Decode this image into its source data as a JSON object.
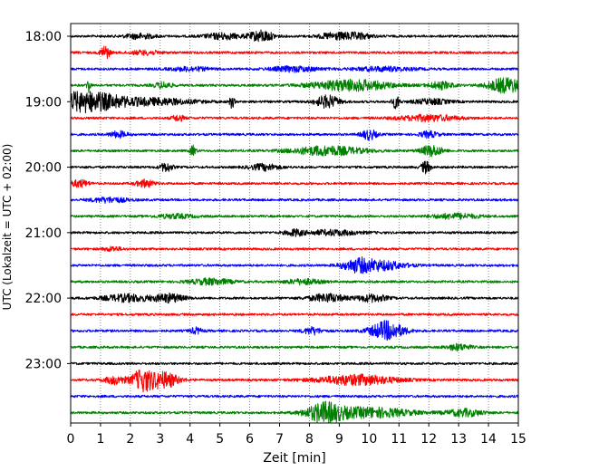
{
  "chart_data": {
    "type": "line",
    "title": "",
    "xlabel": "Zeit  [min]",
    "ylabel": "UTC (Lokalzeit = UTC + 02:00)",
    "xlim": [
      0,
      15
    ],
    "x_ticks": [
      "0",
      "1",
      "2",
      "3",
      "4",
      "5",
      "6",
      "7",
      "8",
      "9",
      "10",
      "11",
      "12",
      "13",
      "14",
      "15"
    ],
    "y_tick_labels": [
      "18:00",
      "19:00",
      "20:00",
      "21:00",
      "22:00",
      "23:00"
    ],
    "grid": "vertical-dotted",
    "trace_colors": [
      "#000000",
      "#ff0000",
      "#0000ff",
      "#008000"
    ],
    "traces": [
      {
        "start": "18:00",
        "color": "black",
        "events": [
          [
            2.3,
            0.5,
            0.25
          ],
          [
            5.1,
            0.6,
            0.3
          ],
          [
            6.4,
            0.4,
            0.55
          ],
          [
            8.8,
            0.5,
            0.3
          ],
          [
            9.6,
            0.5,
            0.3
          ]
        ]
      },
      {
        "start": "18:15",
        "color": "red",
        "events": [
          [
            1.15,
            0.15,
            0.7
          ],
          [
            2.5,
            0.5,
            0.2
          ]
        ]
      },
      {
        "start": "18:30",
        "color": "blue",
        "events": [
          [
            4.0,
            0.6,
            0.2
          ],
          [
            7.5,
            0.8,
            0.25
          ],
          [
            10.5,
            1.0,
            0.2
          ]
        ]
      },
      {
        "start": "18:45",
        "color": "green",
        "events": [
          [
            0.6,
            0.06,
            0.8
          ],
          [
            3.1,
            0.3,
            0.3
          ],
          [
            9.4,
            1.3,
            0.55
          ],
          [
            12.4,
            0.4,
            0.35
          ],
          [
            14.6,
            0.6,
            0.75
          ]
        ]
      },
      {
        "start": "19:00",
        "color": "black",
        "events": [
          [
            0.5,
            1.3,
            1.0
          ],
          [
            3.0,
            1.2,
            0.3
          ],
          [
            5.4,
            0.08,
            0.6
          ],
          [
            8.6,
            0.4,
            0.6
          ],
          [
            10.9,
            0.12,
            0.65
          ],
          [
            12.1,
            0.6,
            0.25
          ]
        ]
      },
      {
        "start": "19:15",
        "color": "red",
        "events": [
          [
            3.6,
            0.2,
            0.3
          ],
          [
            12.0,
            1.0,
            0.3
          ]
        ]
      },
      {
        "start": "19:30",
        "color": "blue",
        "events": [
          [
            1.6,
            0.3,
            0.3
          ],
          [
            10.0,
            0.25,
            0.5
          ],
          [
            12.0,
            0.3,
            0.3
          ]
        ]
      },
      {
        "start": "19:45",
        "color": "green",
        "events": [
          [
            4.1,
            0.1,
            0.5
          ],
          [
            8.6,
            1.2,
            0.45
          ],
          [
            12.1,
            0.35,
            0.55
          ]
        ]
      },
      {
        "start": "20:00",
        "color": "black",
        "events": [
          [
            3.2,
            0.2,
            0.45
          ],
          [
            6.5,
            0.5,
            0.3
          ],
          [
            11.9,
            0.15,
            0.6
          ]
        ]
      },
      {
        "start": "20:15",
        "color": "red",
        "events": [
          [
            0.3,
            0.3,
            0.35
          ],
          [
            2.5,
            0.3,
            0.35
          ]
        ]
      },
      {
        "start": "20:30",
        "color": "blue",
        "events": [
          [
            1.3,
            0.6,
            0.25
          ]
        ]
      },
      {
        "start": "20:45",
        "color": "green",
        "events": [
          [
            3.5,
            0.6,
            0.2
          ],
          [
            12.9,
            0.8,
            0.25
          ]
        ]
      },
      {
        "start": "21:00",
        "color": "black",
        "events": [
          [
            7.5,
            0.3,
            0.3
          ],
          [
            8.8,
            0.9,
            0.25
          ]
        ]
      },
      {
        "start": "21:15",
        "color": "red",
        "events": [
          [
            1.4,
            0.3,
            0.2
          ]
        ]
      },
      {
        "start": "21:30",
        "color": "blue",
        "events": [
          [
            9.6,
            0.5,
            0.55
          ],
          [
            10.4,
            0.8,
            0.45
          ]
        ]
      },
      {
        "start": "21:45",
        "color": "green",
        "events": [
          [
            4.7,
            0.7,
            0.3
          ],
          [
            7.8,
            0.6,
            0.25
          ]
        ]
      },
      {
        "start": "22:00",
        "color": "black",
        "events": [
          [
            1.9,
            0.8,
            0.35
          ],
          [
            3.3,
            0.5,
            0.4
          ],
          [
            8.6,
            0.6,
            0.4
          ],
          [
            10.1,
            0.5,
            0.35
          ]
        ]
      },
      {
        "start": "22:15",
        "color": "red",
        "events": []
      },
      {
        "start": "22:30",
        "color": "blue",
        "events": [
          [
            4.2,
            0.2,
            0.3
          ],
          [
            8.1,
            0.3,
            0.35
          ],
          [
            10.6,
            0.55,
            0.95
          ]
        ]
      },
      {
        "start": "22:45",
        "color": "green",
        "events": [
          [
            13.0,
            0.4,
            0.3
          ]
        ]
      },
      {
        "start": "23:00",
        "color": "black",
        "events": []
      },
      {
        "start": "23:15",
        "color": "red",
        "events": [
          [
            1.5,
            0.35,
            0.4
          ],
          [
            2.4,
            0.35,
            1.0
          ],
          [
            3.1,
            0.5,
            0.8
          ],
          [
            9.6,
            1.3,
            0.5
          ]
        ]
      },
      {
        "start": "23:30",
        "color": "blue",
        "events": []
      },
      {
        "start": "23:45",
        "color": "green",
        "events": [
          [
            8.5,
            0.6,
            0.9
          ],
          [
            10.0,
            1.4,
            0.5
          ],
          [
            13.2,
            0.6,
            0.35
          ]
        ]
      }
    ]
  }
}
